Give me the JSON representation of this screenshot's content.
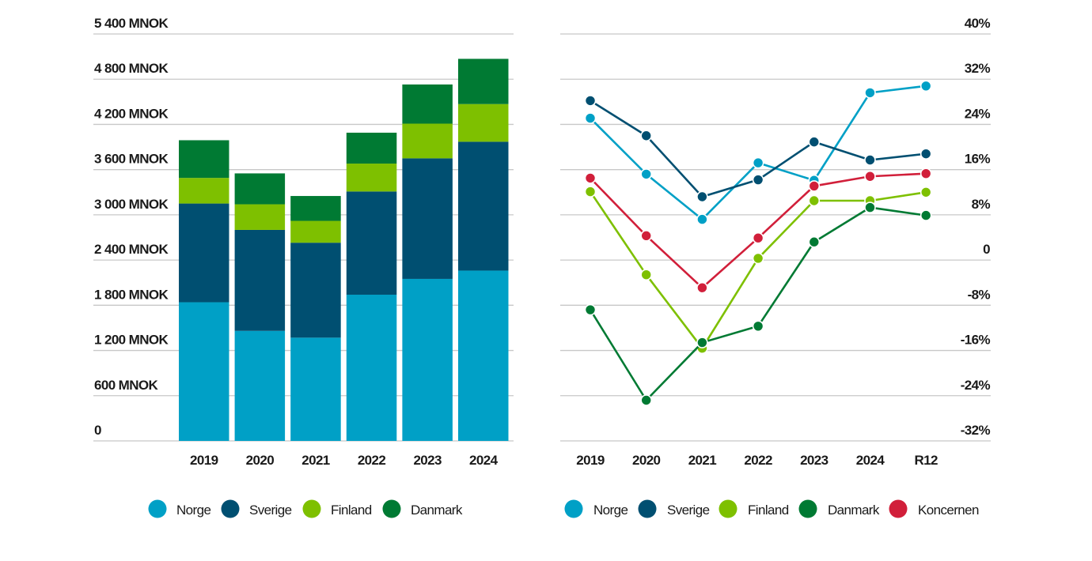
{
  "colors": {
    "Norge": "#00a0c6",
    "Sverige": "#004f71",
    "Finland": "#7ec000",
    "Danmark": "#007a33",
    "Koncernen": "#d11f3a",
    "grid": "#c8c8c8"
  },
  "chart_data": [
    {
      "type": "bar",
      "stacked": true,
      "title": "",
      "xlabel": "",
      "ylabel": "",
      "categories": [
        "2019",
        "2020",
        "2021",
        "2022",
        "2023",
        "2024"
      ],
      "ylim": [
        0,
        5400
      ],
      "yticks": [
        0,
        600,
        1200,
        1800,
        2400,
        3000,
        3600,
        4200,
        4800,
        5400
      ],
      "ytick_labels": [
        "0",
        "600 MNOK",
        "1 200 MNOK",
        "1 800 MNOK",
        "2 400 MNOK",
        "3 000 MNOK",
        "3 600 MNOK",
        "4 200 MNOK",
        "4 800 MNOK",
        "5 400 MNOK"
      ],
      "grid": true,
      "legend_position": "bottom",
      "series": [
        {
          "name": "Norge",
          "values": [
            1840,
            1460,
            1370,
            1940,
            2150,
            2260
          ]
        },
        {
          "name": "Sverige",
          "values": [
            1310,
            1340,
            1260,
            1370,
            1600,
            1710
          ]
        },
        {
          "name": "Finland",
          "values": [
            340,
            340,
            290,
            370,
            460,
            500
          ]
        },
        {
          "name": "Danmark",
          "values": [
            500,
            410,
            330,
            410,
            520,
            600
          ]
        }
      ],
      "legend": [
        "Norge",
        "Sverige",
        "Finland",
        "Danmark"
      ]
    },
    {
      "type": "line",
      "title": "",
      "xlabel": "",
      "ylabel": "",
      "categories": [
        "2019",
        "2020",
        "2021",
        "2022",
        "2023",
        "2024",
        "R12"
      ],
      "ylim": [
        -32,
        40
      ],
      "yticks": [
        -32,
        -24,
        -16,
        -8,
        0,
        8,
        16,
        24,
        32,
        40
      ],
      "ytick_labels": [
        "-32%",
        "-24%",
        "-16%",
        "-8%",
        "0",
        "8%",
        "16%",
        "24%",
        "32%",
        "40%"
      ],
      "y_axis_side": "right",
      "grid": true,
      "legend_position": "bottom",
      "series": [
        {
          "name": "Norge",
          "values": [
            25.1,
            15.2,
            7.2,
            17.2,
            14.1,
            29.6,
            30.8
          ]
        },
        {
          "name": "Sverige",
          "values": [
            28.2,
            22.0,
            11.2,
            14.2,
            20.9,
            17.7,
            18.8
          ]
        },
        {
          "name": "Finland",
          "values": [
            12.1,
            -2.6,
            -15.6,
            0.3,
            10.5,
            10.5,
            12.0
          ]
        },
        {
          "name": "Danmark",
          "values": [
            -8.8,
            -24.8,
            -14.6,
            -11.7,
            3.2,
            9.3,
            7.9
          ]
        },
        {
          "name": "Koncernen",
          "values": [
            14.5,
            4.3,
            -4.9,
            3.9,
            13.1,
            14.8,
            15.3
          ]
        }
      ],
      "legend": [
        "Norge",
        "Sverige",
        "Finland",
        "Danmark",
        "Koncernen"
      ]
    }
  ]
}
